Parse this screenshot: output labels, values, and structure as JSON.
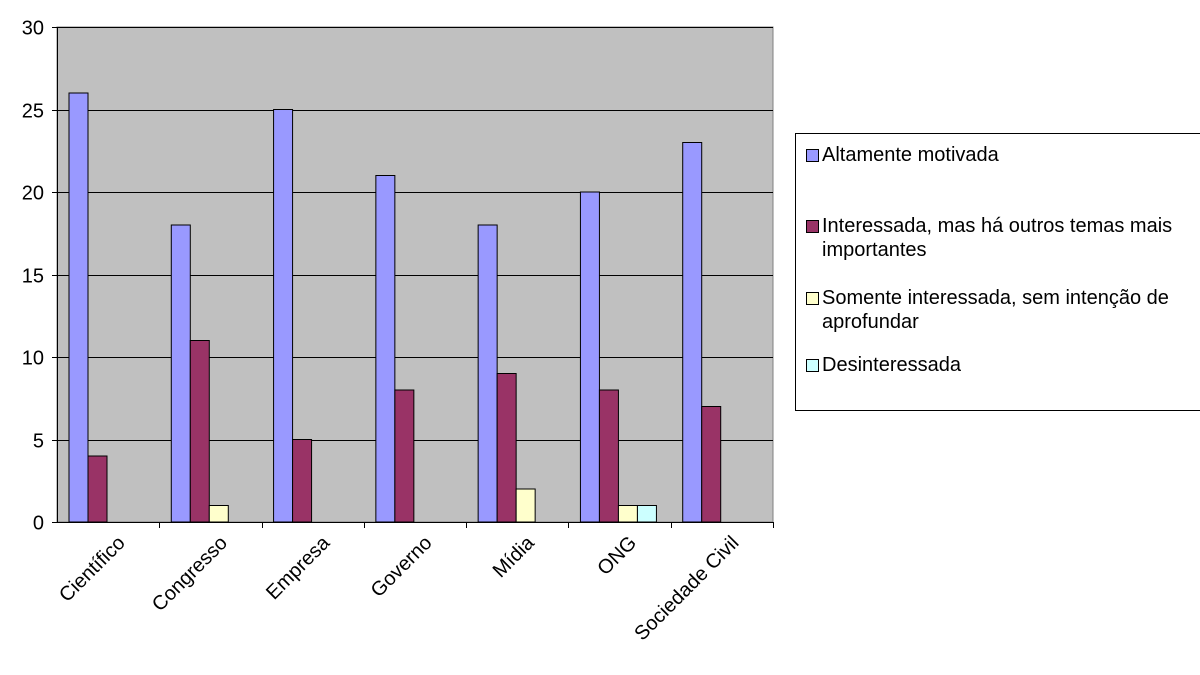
{
  "chart_data": {
    "type": "bar",
    "title": "",
    "xlabel": "",
    "ylabel": "",
    "ylim": [
      0,
      30
    ],
    "yticks": [
      0,
      5,
      10,
      15,
      20,
      25,
      30
    ],
    "grid": true,
    "legend_position": "right",
    "plot_background": "#c0c0c0",
    "categories": [
      "Científico",
      "Congresso",
      "Empresa",
      "Governo",
      "Mídia",
      "ONG",
      "Sociedade Civil"
    ],
    "series": [
      {
        "name": "Altamente motivada",
        "color": "#9999ff",
        "values": [
          26,
          18,
          25,
          21,
          18,
          20,
          23
        ]
      },
      {
        "name": "Interessada, mas há outros temas mais importantes",
        "color": "#993366",
        "values": [
          4,
          11,
          5,
          8,
          9,
          8,
          7
        ]
      },
      {
        "name": "Somente interessada, sem intenção de aprofundar",
        "color": "#ffffcc",
        "values": [
          0,
          1,
          0,
          0,
          2,
          1,
          0
        ]
      },
      {
        "name": "Desinteressada",
        "color": "#ccffff",
        "values": [
          0,
          0,
          0,
          0,
          0,
          1,
          0
        ]
      }
    ]
  }
}
